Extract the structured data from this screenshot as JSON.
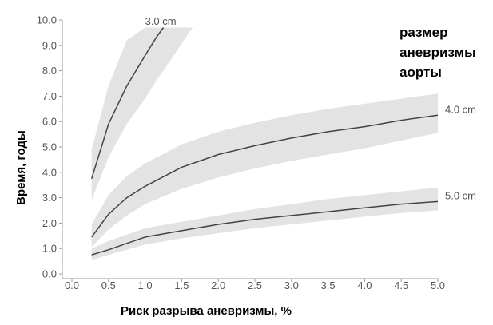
{
  "chart_data": {
    "type": "line",
    "xlabel": "Риск разрыва аневризмы, %",
    "ylabel": "Время, годы",
    "legend_title": [
      "размер",
      "аневризмы",
      "аорты"
    ],
    "legend_placement": "top-right",
    "xlim": [
      0,
      5
    ],
    "ylim": [
      0,
      10
    ],
    "x_ticks": [
      "0.0",
      "0.5",
      "1.0",
      "1.5",
      "2.0",
      "2.5",
      "3.0",
      "3.5",
      "4.0",
      "4.5",
      "5.0"
    ],
    "y_ticks": [
      "0.0",
      "1.0",
      "2.0",
      "3.0",
      "4.0",
      "5.0",
      "6.0",
      "7.0",
      "8.0",
      "9.0",
      "10.0"
    ],
    "grid": false,
    "colors": {
      "line": "#444444",
      "band": "#e3e3e3",
      "axis": "#999999"
    },
    "series": [
      {
        "name": "3.0 cm",
        "x": [
          0.27,
          0.5,
          0.75,
          1.0,
          1.15,
          1.25
        ],
        "y": [
          3.75,
          5.9,
          7.4,
          8.6,
          9.3,
          9.7
        ],
        "lower": [
          2.9,
          4.6,
          5.9,
          6.9,
          7.6,
          8.0
        ],
        "upper": [
          4.9,
          7.4,
          9.2,
          9.7,
          9.7,
          9.7
        ],
        "band_upper_x_end": 1.65
      },
      {
        "name": "4.0 cm",
        "x": [
          0.27,
          0.5,
          0.75,
          1.0,
          1.5,
          2.0,
          2.5,
          3.0,
          3.5,
          4.0,
          4.5,
          5.0
        ],
        "y": [
          1.45,
          2.35,
          3.0,
          3.45,
          4.2,
          4.7,
          5.05,
          5.35,
          5.6,
          5.8,
          6.05,
          6.25
        ],
        "lower": [
          1.05,
          1.75,
          2.3,
          2.75,
          3.35,
          3.8,
          4.15,
          4.45,
          4.7,
          4.95,
          5.25,
          5.55
        ],
        "upper": [
          1.95,
          3.1,
          3.85,
          4.35,
          5.1,
          5.6,
          5.95,
          6.25,
          6.5,
          6.7,
          6.9,
          7.1
        ]
      },
      {
        "name": "5.0 cm",
        "x": [
          0.27,
          0.5,
          0.75,
          1.0,
          1.5,
          2.0,
          2.5,
          3.0,
          3.5,
          4.0,
          4.5,
          5.0
        ],
        "y": [
          0.75,
          0.95,
          1.2,
          1.45,
          1.7,
          1.95,
          2.15,
          2.3,
          2.45,
          2.6,
          2.75,
          2.85
        ],
        "lower": [
          0.55,
          0.75,
          0.95,
          1.15,
          1.4,
          1.6,
          1.8,
          1.95,
          2.1,
          2.25,
          2.4,
          2.5
        ],
        "upper": [
          1.0,
          1.3,
          1.55,
          1.8,
          2.05,
          2.3,
          2.55,
          2.75,
          2.95,
          3.1,
          3.25,
          3.4
        ]
      }
    ]
  }
}
